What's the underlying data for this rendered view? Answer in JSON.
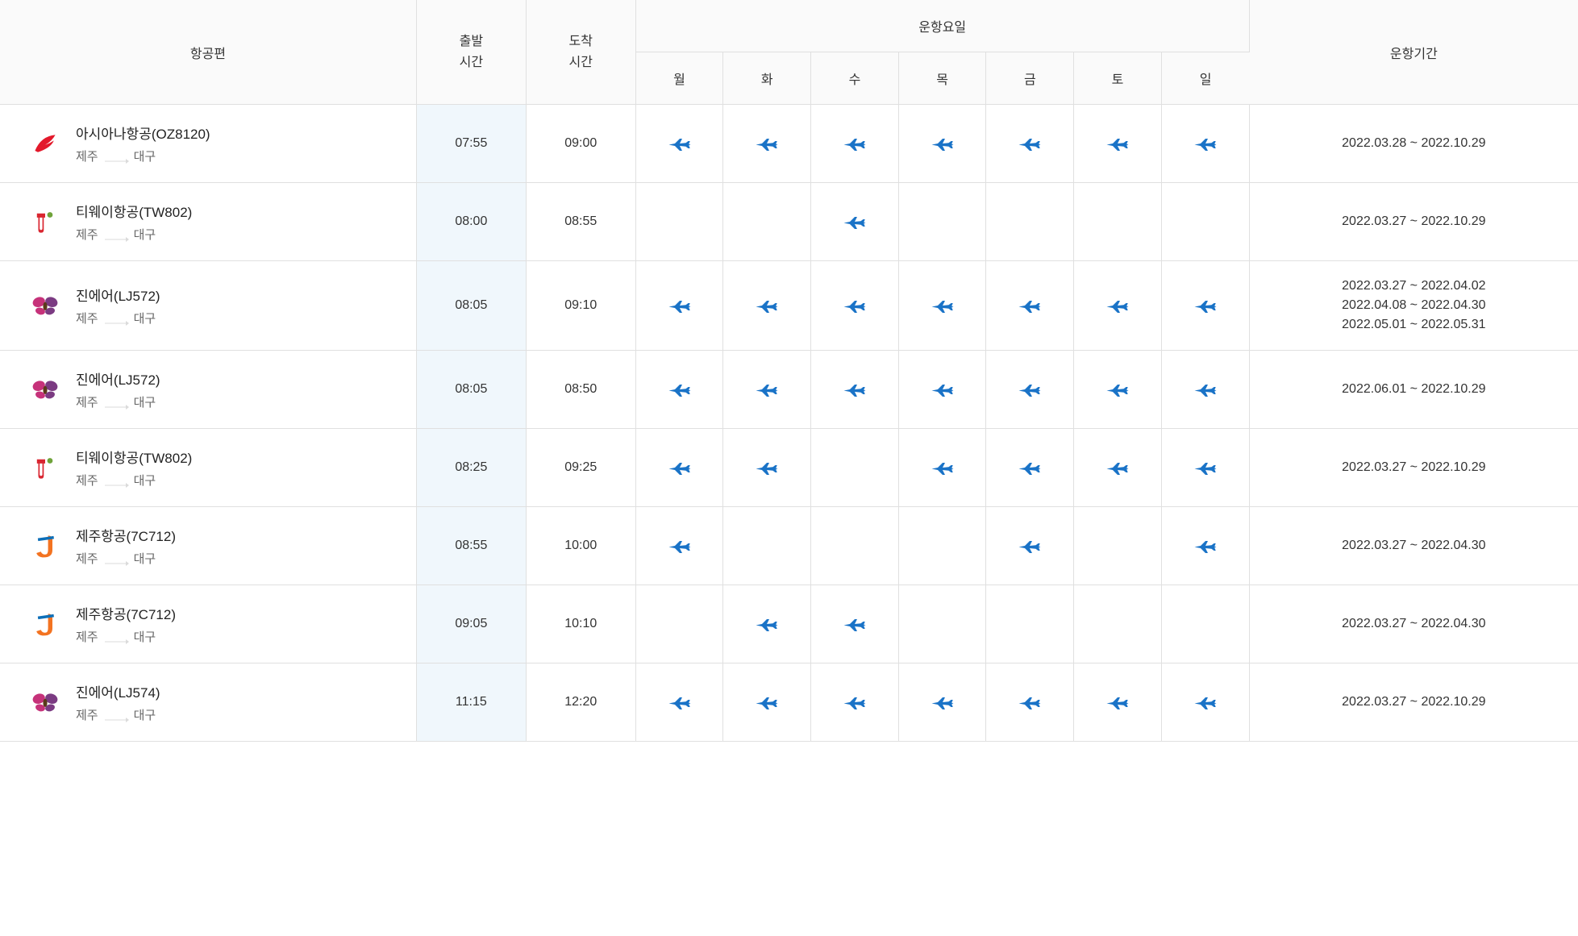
{
  "headers": {
    "flight": "항공편",
    "departure": "출발시간",
    "arrival": "도착시간",
    "days_group": "운항요일",
    "mon": "월",
    "tue": "화",
    "wed": "수",
    "thu": "목",
    "fri": "금",
    "sat": "토",
    "sun": "일",
    "period": "운항기간"
  },
  "colors": {
    "header_bg": "#fafafa",
    "dep_col_bg": "#f0f7fc",
    "border": "#e0e0e0",
    "text_primary": "#333333",
    "text_secondary": "#666666",
    "plane_icon": "#1a73c7",
    "asiana": "#e3192b",
    "tway_red": "#d92630",
    "tway_green": "#6fa33a",
    "jinair_pink": "#c6327a",
    "jinair_purple": "#7b3b82",
    "jeju_orange": "#f37321",
    "jeju_blue": "#0d6fb8"
  },
  "route": {
    "from": "제주",
    "to": "대구"
  },
  "flights": [
    {
      "airline": "asiana",
      "name": "아시아나항공(OZ8120)",
      "dep": "07:55",
      "arr": "09:00",
      "days": [
        true,
        true,
        true,
        true,
        true,
        true,
        true
      ],
      "periods": [
        "2022.03.28 ~ 2022.10.29"
      ]
    },
    {
      "airline": "tway",
      "name": "티웨이항공(TW802)",
      "dep": "08:00",
      "arr": "08:55",
      "days": [
        false,
        false,
        true,
        false,
        false,
        false,
        false
      ],
      "periods": [
        "2022.03.27 ~ 2022.10.29"
      ]
    },
    {
      "airline": "jinair",
      "name": "진에어(LJ572)",
      "dep": "08:05",
      "arr": "09:10",
      "days": [
        true,
        true,
        true,
        true,
        true,
        true,
        true
      ],
      "periods": [
        "2022.03.27 ~ 2022.04.02",
        "2022.04.08 ~ 2022.04.30",
        "2022.05.01 ~ 2022.05.31"
      ]
    },
    {
      "airline": "jinair",
      "name": "진에어(LJ572)",
      "dep": "08:05",
      "arr": "08:50",
      "days": [
        true,
        true,
        true,
        true,
        true,
        true,
        true
      ],
      "periods": [
        "2022.06.01 ~ 2022.10.29"
      ]
    },
    {
      "airline": "tway",
      "name": "티웨이항공(TW802)",
      "dep": "08:25",
      "arr": "09:25",
      "days": [
        true,
        true,
        false,
        true,
        true,
        true,
        true
      ],
      "periods": [
        "2022.03.27 ~ 2022.10.29"
      ]
    },
    {
      "airline": "jeju",
      "name": "제주항공(7C712)",
      "dep": "08:55",
      "arr": "10:00",
      "days": [
        true,
        false,
        false,
        false,
        true,
        false,
        true
      ],
      "periods": [
        "2022.03.27 ~ 2022.04.30"
      ]
    },
    {
      "airline": "jeju",
      "name": "제주항공(7C712)",
      "dep": "09:05",
      "arr": "10:10",
      "days": [
        false,
        true,
        true,
        false,
        false,
        false,
        false
      ],
      "periods": [
        "2022.03.27 ~ 2022.04.30"
      ]
    },
    {
      "airline": "jinair",
      "name": "진에어(LJ574)",
      "dep": "11:15",
      "arr": "12:20",
      "days": [
        true,
        true,
        true,
        true,
        true,
        true,
        true
      ],
      "periods": [
        "2022.03.27 ~ 2022.10.29"
      ]
    }
  ]
}
